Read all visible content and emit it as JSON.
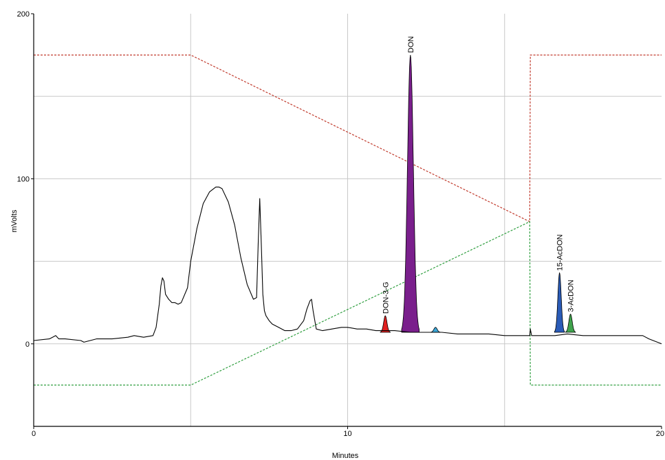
{
  "chart_data": {
    "type": "line",
    "xlabel": "Minutes",
    "ylabel": "mVolts",
    "xlim": [
      0,
      20
    ],
    "ylim": [
      -50,
      200
    ],
    "x_ticks": [
      "0",
      "10",
      "20"
    ],
    "y_ticks": [
      "200",
      "100",
      "0"
    ],
    "x_grid_minutes": [
      5,
      10,
      15
    ],
    "y_grid_mvolts": [
      150,
      100,
      50,
      0
    ],
    "grid": true,
    "trace_color": "#000000",
    "gradient_colors": {
      "red": "#c0392b",
      "green": "#2e9e3e"
    },
    "signal": {
      "x": [
        0,
        0.5,
        0.6,
        0.7,
        0.8,
        1.0,
        1.5,
        1.6,
        1.8,
        2.0,
        2.5,
        3.0,
        3.2,
        3.5,
        3.8,
        3.9,
        4.0,
        4.05,
        4.1,
        4.15,
        4.2,
        4.3,
        4.4,
        4.5,
        4.6,
        4.7,
        4.9,
        5.0,
        5.2,
        5.4,
        5.6,
        5.8,
        5.9,
        6.0,
        6.2,
        6.4,
        6.6,
        6.8,
        7.0,
        7.1,
        7.15,
        7.2,
        7.25,
        7.3,
        7.35,
        7.4,
        7.5,
        7.6,
        7.8,
        8.0,
        8.2,
        8.4,
        8.6,
        8.7,
        8.8,
        8.85,
        8.9,
        9.0,
        9.2,
        9.5,
        9.8,
        10.0,
        10.3,
        10.6,
        10.9,
        11.5,
        12.0,
        12.5,
        13.0,
        13.5,
        14.0,
        14.5,
        15.0,
        15.5,
        15.8,
        15.82,
        15.86,
        15.9,
        16.3,
        16.6,
        17.0,
        17.5,
        18.0,
        18.5,
        19.0,
        19.4,
        19.6,
        20.0
      ],
      "y": [
        2,
        3,
        4,
        5,
        3,
        3,
        2,
        1,
        2,
        3,
        3,
        4,
        5,
        4,
        5,
        10,
        24,
        35,
        40,
        38,
        30,
        27,
        25,
        25,
        24,
        25,
        34,
        50,
        70,
        85,
        92,
        95,
        95,
        94,
        86,
        72,
        52,
        36,
        27,
        28,
        60,
        88,
        60,
        30,
        20,
        17,
        14,
        12,
        10,
        8,
        8,
        9,
        14,
        21,
        26,
        27,
        20,
        9,
        8,
        9,
        10,
        10,
        9,
        9,
        8,
        8,
        7,
        7,
        7,
        6,
        6,
        6,
        5,
        5,
        5,
        9,
        5,
        5,
        5,
        5,
        6,
        5,
        5,
        5,
        5,
        5,
        3,
        0
      ]
    },
    "series": [
      {
        "x": [
          0,
          5,
          15.8,
          15.82,
          20
        ],
        "values": [
          175,
          175,
          74,
          175,
          175
        ]
      },
      {
        "x": [
          0,
          5,
          15.8,
          15.82,
          20
        ],
        "values": [
          -25,
          -25,
          74,
          -25,
          -25
        ]
      }
    ],
    "peaks": [
      {
        "label": "DON-3-G",
        "rt": 11.2,
        "height": 17,
        "color": "#e02020"
      },
      {
        "label": "DON",
        "rt": 12.0,
        "height": 175,
        "color": "#7a1f8c"
      },
      {
        "label": "",
        "rt": 12.8,
        "height": 10,
        "color": "#3aa6d8"
      },
      {
        "label": "15-AcDON",
        "rt": 16.75,
        "height": 43,
        "color": "#2a5bb7"
      },
      {
        "label": "3-AcDON",
        "rt": 17.1,
        "height": 18,
        "color": "#3fa34d"
      }
    ]
  }
}
